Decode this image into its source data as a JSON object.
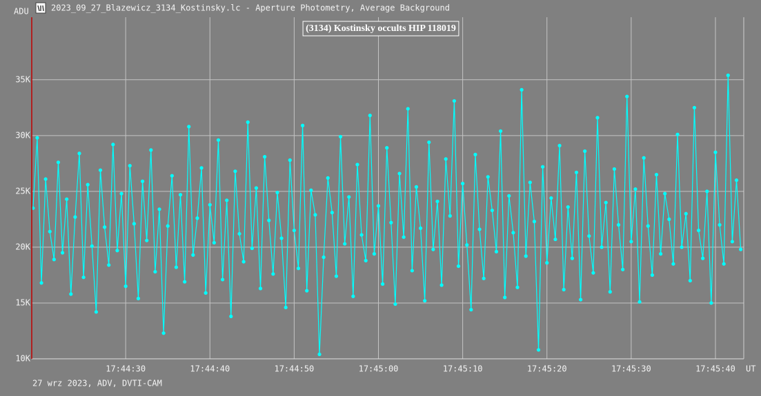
{
  "window_title": "2023_09_27_Blazewicz_3134_Kostinsky.lc - Aperture Photometry, Average Background",
  "footer": "27 wrz 2023, ADV, DVTI-CAM",
  "chart_data": {
    "type": "line",
    "title": "(3134) Kostinsky occults HIP 118019",
    "y_label": "ADU",
    "x_label": "UT",
    "color": "#00ffff",
    "grid": true,
    "xlim": [
      63858.85,
      63943.36
    ],
    "xticks": [
      {
        "value": 63870,
        "label": "17:44:30"
      },
      {
        "value": 63880,
        "label": "17:44:40"
      },
      {
        "value": 63890,
        "label": "17:44:50"
      },
      {
        "value": 63900,
        "label": "17:45:00"
      },
      {
        "value": 63910,
        "label": "17:45:10"
      },
      {
        "value": 63920,
        "label": "17:45:20"
      },
      {
        "value": 63930,
        "label": "17:45:30"
      },
      {
        "value": 63940,
        "label": "17:45:40"
      }
    ],
    "ylim": [
      10000,
      40600
    ],
    "yticks": [
      {
        "value": 10000,
        "label": "10K"
      },
      {
        "value": 15000,
        "label": "15K"
      },
      {
        "value": 20000,
        "label": "20K"
      },
      {
        "value": 25000,
        "label": "25K"
      },
      {
        "value": 30000,
        "label": "30K"
      },
      {
        "value": 35000,
        "label": "35K"
      }
    ],
    "x": [
      63859,
      63859.5,
      63860,
      63860.5,
      63861,
      63861.5,
      63862,
      63862.5,
      63863,
      63863.5,
      63864,
      63864.5,
      63865,
      63865.5,
      63866,
      63866.5,
      63867,
      63867.5,
      63868,
      63868.5,
      63869,
      63869.5,
      63870,
      63870.5,
      63871,
      63871.5,
      63872,
      63872.5,
      63873,
      63873.5,
      63874,
      63874.5,
      63875,
      63875.5,
      63876,
      63876.5,
      63877,
      63877.5,
      63878,
      63878.5,
      63879,
      63879.5,
      63880,
      63880.5,
      63881,
      63881.5,
      63882,
      63882.5,
      63883,
      63883.5,
      63884,
      63884.5,
      63885,
      63885.5,
      63886,
      63886.5,
      63887,
      63887.5,
      63888,
      63888.5,
      63889,
      63889.5,
      63890,
      63890.5,
      63891,
      63891.5,
      63892,
      63892.5,
      63893,
      63893.5,
      63894,
      63894.5,
      63895,
      63895.5,
      63896,
      63896.5,
      63897,
      63897.5,
      63898,
      63898.5,
      63899,
      63899.5,
      63900,
      63900.5,
      63901,
      63901.5,
      63902,
      63902.5,
      63903,
      63903.5,
      63904,
      63904.5,
      63905,
      63905.5,
      63906,
      63906.5,
      63907,
      63907.5,
      63908,
      63908.5,
      63909,
      63909.5,
      63910,
      63910.5,
      63911,
      63911.5,
      63912,
      63912.5,
      63913,
      63913.5,
      63914,
      63914.5,
      63915,
      63915.5,
      63916,
      63916.5,
      63917,
      63917.5,
      63918,
      63918.5,
      63919,
      63919.5,
      63920,
      63920.5,
      63921,
      63921.5,
      63922,
      63922.5,
      63923,
      63923.5,
      63924,
      63924.5,
      63925,
      63925.5,
      63926,
      63926.5,
      63927,
      63927.5,
      63928,
      63928.5,
      63929,
      63929.5,
      63930,
      63930.5,
      63931,
      63931.5,
      63932,
      63932.5,
      63933,
      63933.5,
      63934,
      63934.5,
      63935,
      63935.5,
      63936,
      63936.5,
      63937,
      63937.5,
      63938,
      63938.5,
      63939,
      63939.5,
      63940,
      63940.5,
      63941,
      63941.5,
      63942,
      63942.5,
      63943
    ],
    "values": [
      23500,
      29800,
      16800,
      26100,
      21400,
      18900,
      27600,
      19500,
      24300,
      15800,
      22700,
      28400,
      17300,
      25600,
      20100,
      14200,
      26900,
      21800,
      18400,
      29200,
      19700,
      24800,
      16500,
      27300,
      22100,
      15400,
      25900,
      20600,
      28700,
      17800,
      23400,
      12300,
      21900,
      26400,
      18200,
      24700,
      16900,
      30800,
      19300,
      22600,
      27100,
      15900,
      23800,
      20400,
      29600,
      17100,
      24200,
      13800,
      26800,
      21200,
      18700,
      31200,
      19900,
      25300,
      16300,
      28100,
      22400,
      17600,
      24900,
      20800,
      14600,
      27800,
      21500,
      18100,
      30900,
      16100,
      25100,
      22900,
      10400,
      19100,
      26200,
      23100,
      17400,
      29900,
      20300,
      24500,
      15600,
      27400,
      21100,
      18800,
      31800,
      19400,
      23700,
      16700,
      28900,
      22200,
      14900,
      26600,
      20900,
      32400,
      17900,
      25400,
      21700,
      15200,
      29400,
      19800,
      24100,
      16600,
      27900,
      22800,
      33100,
      18300,
      25700,
      20200,
      14400,
      28300,
      21600,
      17200,
      26300,
      23300,
      19600,
      30400,
      15500,
      24600,
      21300,
      16400,
      34100,
      19200,
      25800,
      22300,
      10800,
      27200,
      18600,
      24400,
      20700,
      29100,
      16200,
      23600,
      19000,
      26700,
      15300,
      28600,
      21000,
      17700,
      31600,
      20000,
      24000,
      16000,
      27000,
      22000,
      18000,
      33500,
      20500,
      25200,
      15100,
      28000,
      21900,
      17500,
      26500,
      19400,
      24800,
      22500,
      18500,
      30100,
      20000,
      23000,
      17000,
      32500,
      21500,
      19000,
      25000,
      15000,
      28500,
      22000,
      18500,
      35400,
      20500,
      26000,
      19800
    ]
  }
}
